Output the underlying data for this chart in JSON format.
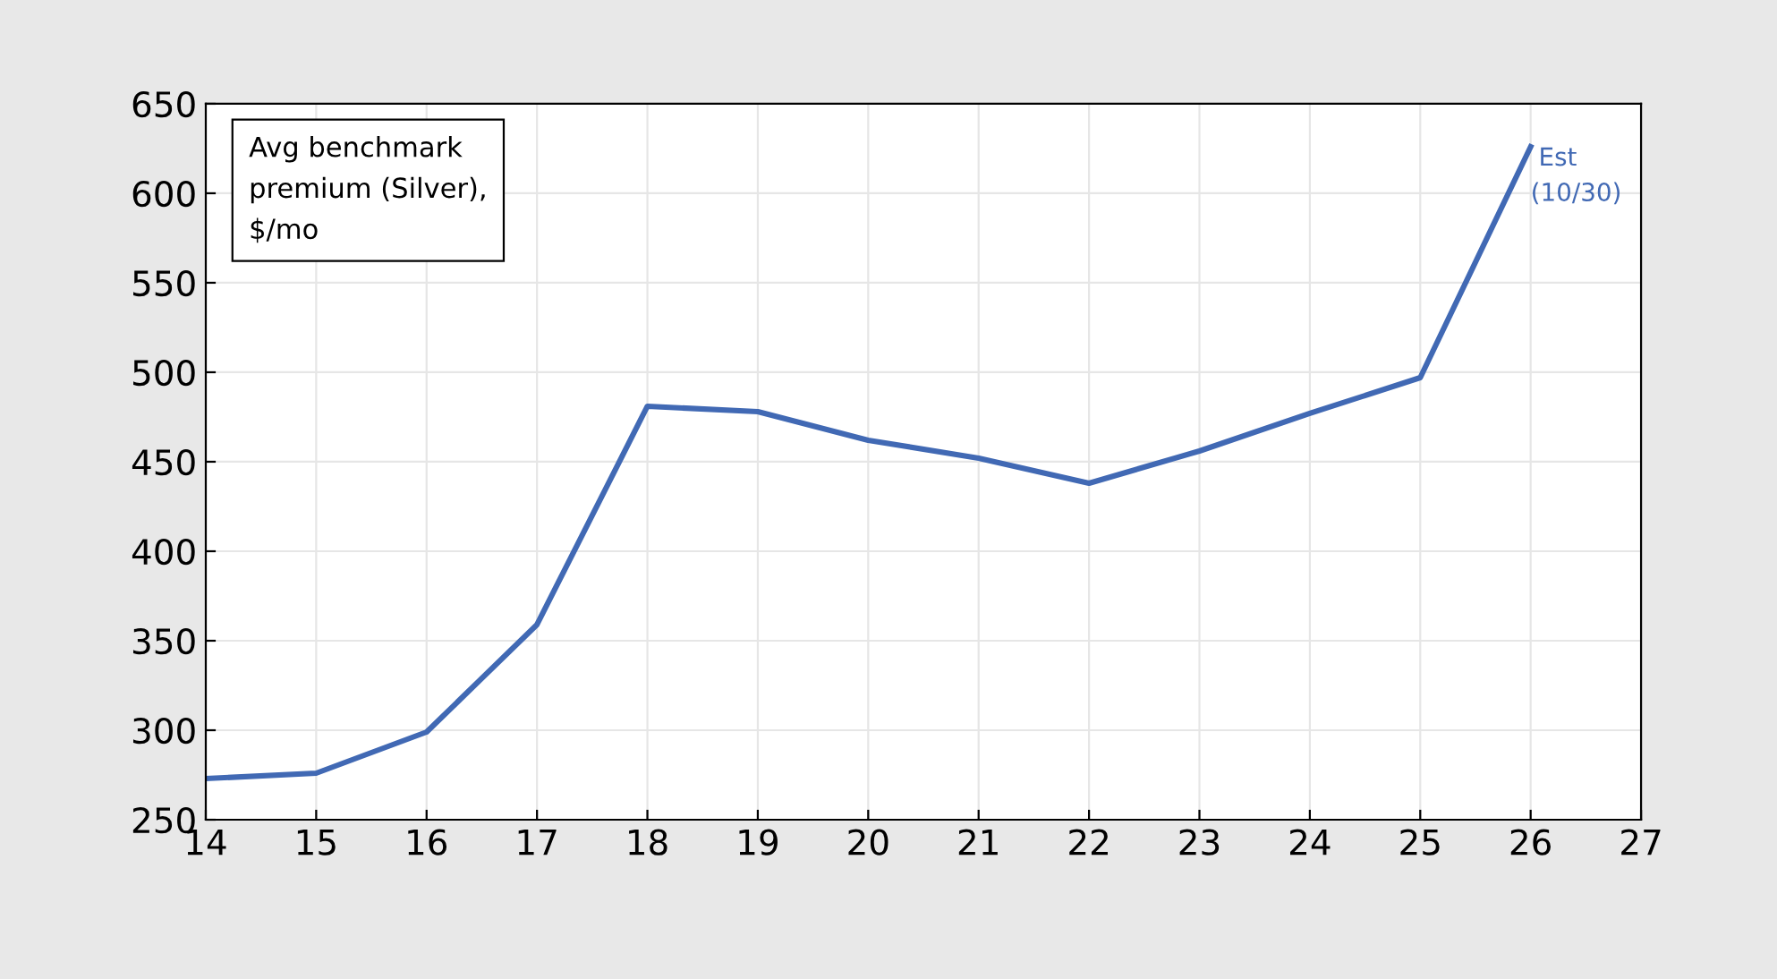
{
  "chart_data": {
    "type": "line",
    "x": [
      14,
      15,
      16,
      17,
      18,
      19,
      20,
      21,
      22,
      23,
      24,
      25,
      26
    ],
    "series": [
      {
        "color": "#4169b4",
        "values": [
          273,
          276,
          299,
          359,
          481,
          478,
          462,
          452,
          438,
          456,
          477,
          497,
          626
        ]
      }
    ],
    "xlim": [
      14,
      27
    ],
    "xticks": [
      14,
      15,
      16,
      17,
      18,
      19,
      20,
      21,
      22,
      23,
      24,
      25,
      26,
      27
    ],
    "ylim": [
      250,
      650
    ],
    "yticks": [
      250,
      300,
      350,
      400,
      450,
      500,
      550,
      600,
      650
    ],
    "grid": true,
    "line_style": "solid",
    "marker": "none",
    "annotations": [
      "Avg benchmark\npremium (Silver),\n$/mo",
      {
        "text": "Est\n(10/30)",
        "x": 26,
        "y": 626
      }
    ]
  }
}
